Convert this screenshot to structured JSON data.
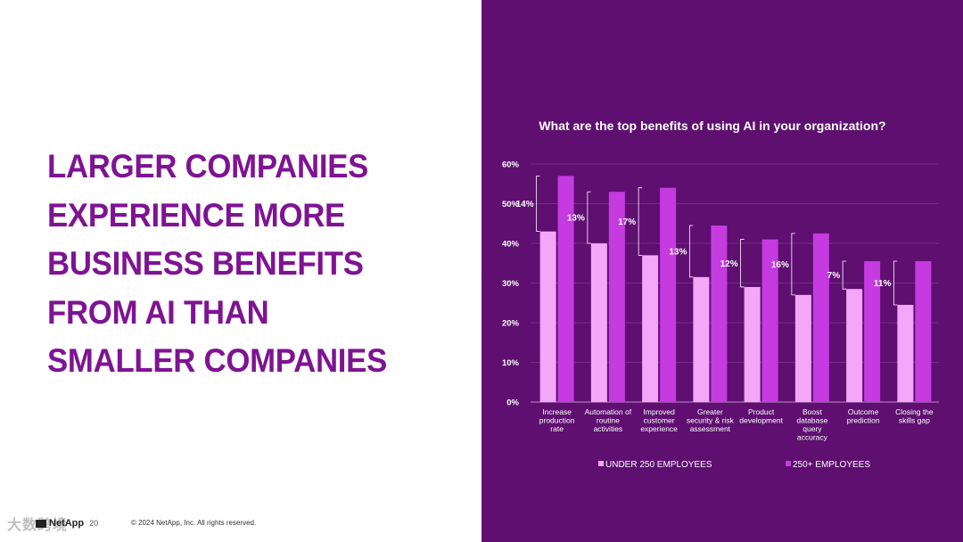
{
  "headline": {
    "lines": [
      "LARGER COMPANIES",
      "EXPERIENCE MORE",
      "BUSINESS BENEFITS",
      "FROM AI THAN",
      "SMALLER COMPANIES"
    ]
  },
  "footer": {
    "logo_text": "NetApp",
    "page_number": "20",
    "copyright": "© 2024 NetApp, Inc. All rights reserved."
  },
  "watermark": "大数跨境",
  "colors": {
    "headline": "#7e1393",
    "panel_bg": "#5e0f70",
    "series_small": "#f4a6f9",
    "series_large": "#c53be0",
    "grid": "#8a4a98"
  },
  "chart_data": {
    "type": "bar",
    "title": "What are the top benefits of using AI in your organization?",
    "ylim": [
      0,
      60
    ],
    "yticks": [
      "0%",
      "10%",
      "20%",
      "30%",
      "40%",
      "50%",
      "60%"
    ],
    "ytick_values": [
      0,
      10,
      20,
      30,
      40,
      50,
      60
    ],
    "categories": [
      [
        "Increase",
        "production",
        "rate"
      ],
      [
        "Automation of",
        "routine",
        "activities"
      ],
      [
        "Improved",
        "customer",
        "experience"
      ],
      [
        "Greater",
        "security & risk",
        "assessment"
      ],
      [
        "Product",
        "development"
      ],
      [
        "Boost",
        "database",
        "query",
        "accuracy"
      ],
      [
        "Outcome",
        "prediction"
      ],
      [
        "Closing the",
        "skills gap"
      ]
    ],
    "series": [
      {
        "name": "UNDER 250 EMPLOYEES",
        "values": [
          43,
          40,
          37,
          31.5,
          29,
          27,
          28.5,
          24.5
        ]
      },
      {
        "name": "250+ EMPLOYEES",
        "values": [
          57,
          53,
          54,
          44.5,
          41,
          42.5,
          35.5,
          35.5
        ]
      }
    ],
    "differences": [
      "14%",
      "13%",
      "17%",
      "13%",
      "12%",
      "16%",
      "7%",
      "11%"
    ],
    "legend_position": "bottom"
  }
}
